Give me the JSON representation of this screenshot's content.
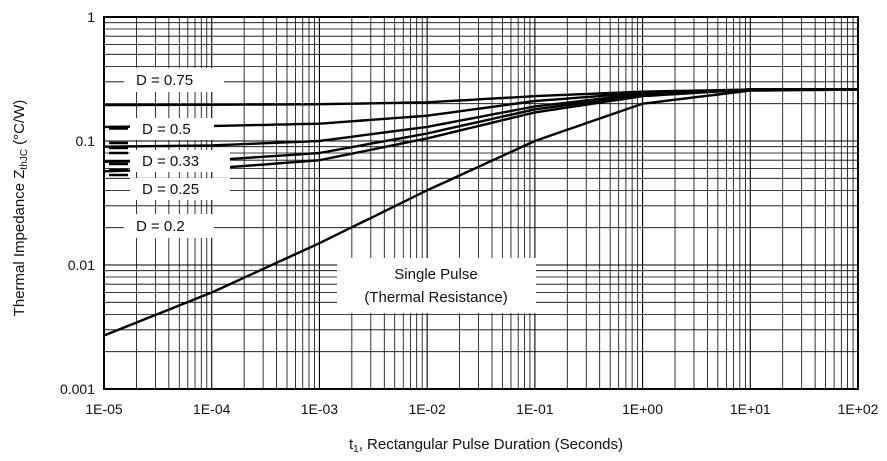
{
  "chart_data": {
    "type": "line",
    "x_scale": "log",
    "y_scale": "log",
    "xlim": [
      1e-05,
      100
    ],
    "ylim": [
      0.001,
      1
    ],
    "grid": true,
    "x_ticks": [
      "1E-05",
      "1E-04",
      "1E-03",
      "1E-02",
      "1E-01",
      "1E+00",
      "1E+01",
      "1E+02"
    ],
    "y_ticks": [
      "1",
      "0.1",
      "0.01",
      "0.001"
    ],
    "xlabel": {
      "prefix": "t",
      "sub": "1",
      "rest": ", Rectangular Pulse Duration (Seconds)"
    },
    "ylabel": {
      "prefix": "Thermal Impedance Z",
      "sub": "thJC",
      "rest": " (°C/W)"
    },
    "series": [
      {
        "name": "D = 0.75",
        "x": [
          1e-05,
          0.0001,
          0.001,
          0.01,
          0.1,
          1,
          10,
          100
        ],
        "y": [
          0.195,
          0.196,
          0.198,
          0.205,
          0.23,
          0.25,
          0.26,
          0.26
        ]
      },
      {
        "name": "D = 0.5",
        "x": [
          1e-05,
          0.0001,
          0.001,
          0.01,
          0.1,
          1,
          10,
          100
        ],
        "y": [
          0.13,
          0.132,
          0.138,
          0.16,
          0.21,
          0.245,
          0.26,
          0.26
        ]
      },
      {
        "name": "D = 0.33",
        "x": [
          1e-05,
          0.0001,
          0.001,
          0.01,
          0.1,
          1,
          10,
          100
        ],
        "y": [
          0.09,
          0.092,
          0.1,
          0.13,
          0.19,
          0.24,
          0.26,
          0.26
        ]
      },
      {
        "name": "D = 0.25",
        "x": [
          1e-05,
          0.0001,
          0.001,
          0.01,
          0.1,
          1,
          10,
          100
        ],
        "y": [
          0.068,
          0.07,
          0.08,
          0.115,
          0.18,
          0.235,
          0.26,
          0.26
        ]
      },
      {
        "name": "D = 0.2",
        "x": [
          1e-05,
          0.0001,
          0.001,
          0.01,
          0.1,
          1,
          10,
          100
        ],
        "y": [
          0.057,
          0.06,
          0.07,
          0.105,
          0.17,
          0.23,
          0.26,
          0.26
        ]
      },
      {
        "name": "Single Pulse (Thermal Resistance)",
        "x": [
          1e-05,
          0.0001,
          0.001,
          0.01,
          0.1,
          1,
          10,
          100
        ],
        "y": [
          0.0027,
          0.006,
          0.015,
          0.04,
          0.1,
          0.2,
          0.255,
          0.26
        ]
      }
    ],
    "annotations": [
      "D = 0.75",
      "D = 0.5",
      "D = 0.33",
      "D = 0.25",
      "D = 0.2",
      "Single Pulse",
      "(Thermal Resistance)"
    ]
  }
}
